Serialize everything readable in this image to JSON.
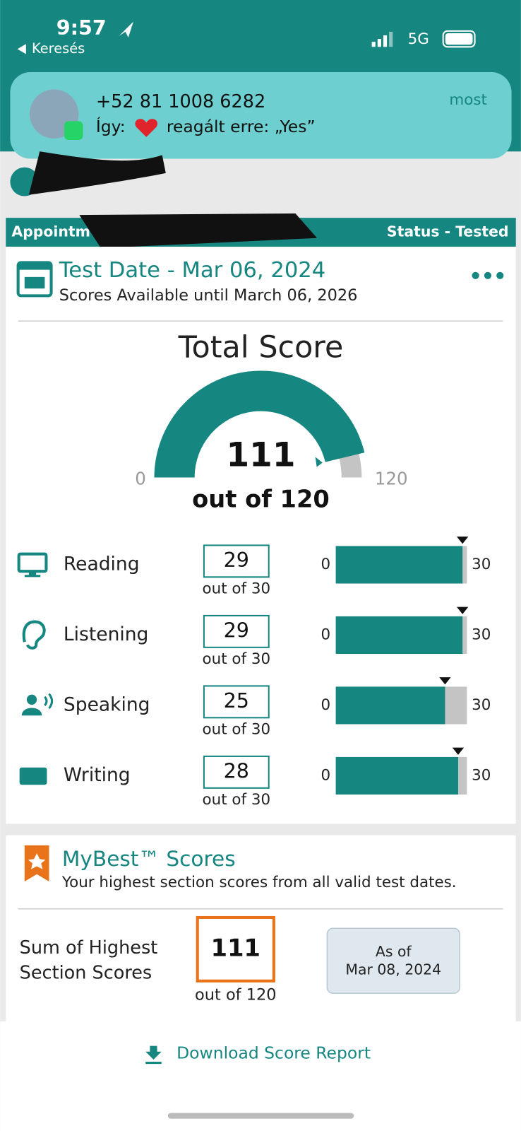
{
  "status_bar": {
    "time": "9:57",
    "back": "Keresés",
    "network": "5G"
  },
  "notification": {
    "sender": "+52 81 1008 6282",
    "prefix": "Így:",
    "message": "reagált erre: „Yes”",
    "time": "most"
  },
  "appointment": {
    "label": "Appointm",
    "status": "Status - Tested"
  },
  "test": {
    "title": "Test Date - Mar 06, 2024",
    "subtitle": "Scores Available until March 06, 2026"
  },
  "total": {
    "title": "Total Score",
    "score": 111,
    "min": 0,
    "max": 120,
    "out_of": "out of 120"
  },
  "sections": [
    {
      "name": "Reading",
      "score": 29,
      "min": 0,
      "max": 30,
      "out_of": "out of 30"
    },
    {
      "name": "Listening",
      "score": 29,
      "min": 0,
      "max": 30,
      "out_of": "out of 30"
    },
    {
      "name": "Speaking",
      "score": 25,
      "min": 0,
      "max": 30,
      "out_of": "out of 30"
    },
    {
      "name": "Writing",
      "score": 28,
      "min": 0,
      "max": 30,
      "out_of": "out of 30"
    }
  ],
  "mybest": {
    "title": "MyBest™ Scores",
    "subtitle": "Your highest section scores from all valid test dates.",
    "sum_label_1": "Sum of Highest",
    "sum_label_2": "Section Scores",
    "score": 111,
    "out_of": "out of 120",
    "as_of_1": "As of",
    "as_of_2": "Mar 08, 2024"
  },
  "footer": {
    "download": "Download Score Report"
  }
}
